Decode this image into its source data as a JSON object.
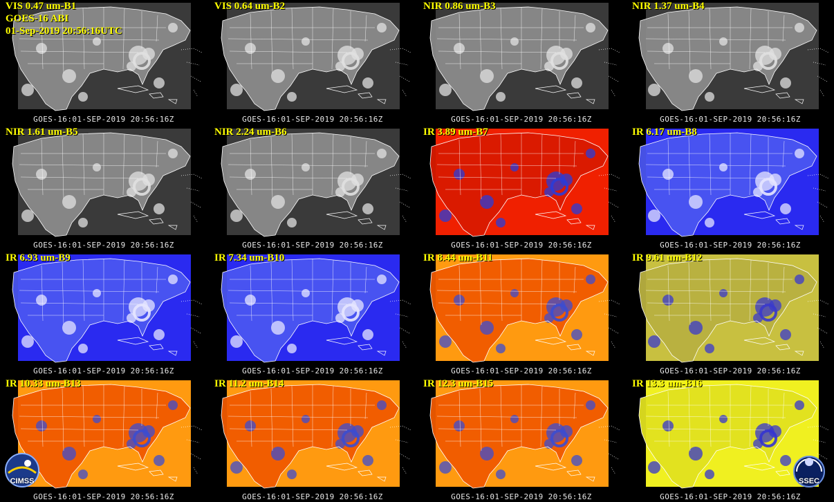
{
  "header": {
    "satellite": "GOES-16 ABI",
    "datetime": "01-Sep-2019 20:56:16UTC"
  },
  "logos": {
    "left": "CIMSS",
    "right": "SSEC"
  },
  "panels": [
    {
      "label": "VIS 0.47 um-B1",
      "stamp": "GOES-16:01-SEP-2019 20:56:16Z",
      "scheme": "gray",
      "tone": "mid"
    },
    {
      "label": "VIS 0.64 um-B2",
      "stamp": "GOES-16:01-SEP-2019 20:56:16Z",
      "scheme": "gray",
      "tone": "mid"
    },
    {
      "label": "NIR 0.86 um-B3",
      "stamp": "GOES-16:01-SEP-2019 20:56:16Z",
      "scheme": "gray",
      "tone": "light"
    },
    {
      "label": "NIR 1.37 um-B4",
      "stamp": "GOES-16:01-SEP-2019 20:56:16Z",
      "scheme": "gray",
      "tone": "dark"
    },
    {
      "label": "NIR 1.61 um-B5",
      "stamp": "GOES-16:01-SEP-2019 20:56:16Z",
      "scheme": "gray",
      "tone": "mid"
    },
    {
      "label": "NIR 2.24 um-B6",
      "stamp": "GOES-16:01-SEP-2019 20:56:16Z",
      "scheme": "gray",
      "tone": "dark"
    },
    {
      "label": "IR 3.89 um-B7",
      "stamp": "GOES-16:01-SEP-2019 20:56:16Z",
      "scheme": "red",
      "tone": "mid"
    },
    {
      "label": "IR 6.17 um-B8",
      "stamp": "GOES-16:01-SEP-2019 20:56:16Z",
      "scheme": "blue",
      "tone": "light"
    },
    {
      "label": "IR 6.93 um-B9",
      "stamp": "GOES-16:01-SEP-2019 20:56:16Z",
      "scheme": "blue",
      "tone": "mid"
    },
    {
      "label": "IR 7.34 um-B10",
      "stamp": "GOES-16:01-SEP-2019 20:56:16Z",
      "scheme": "blue",
      "tone": "dark"
    },
    {
      "label": "IR 8.44 um-B11",
      "stamp": "GOES-16:01-SEP-2019 20:56:16Z",
      "scheme": "orange",
      "tone": "mid"
    },
    {
      "label": "IR 9.61 um-B12",
      "stamp": "GOES-16:01-SEP-2019 20:56:16Z",
      "scheme": "olive",
      "tone": "mid"
    },
    {
      "label": "IR 10.33 um-B13",
      "stamp": "GOES-16:01-SEP-2019 20:56:16Z",
      "scheme": "orange",
      "tone": "mid"
    },
    {
      "label": "IR 11.2 um-B14",
      "stamp": "GOES-16:01-SEP-2019 20:56:16Z",
      "scheme": "orange",
      "tone": "mid"
    },
    {
      "label": "IR 12.3 um-B15",
      "stamp": "GOES-16:01-SEP-2019 20:56:16Z",
      "scheme": "orange",
      "tone": "mid"
    },
    {
      "label": "IR 13.3 um-B16",
      "stamp": "GOES-16:01-SEP-2019 20:56:16Z",
      "scheme": "yellow",
      "tone": "mid"
    }
  ],
  "colors": {
    "label": "#ffff00",
    "gray": {
      "land": "#8a8a8a",
      "ocean": "#3a3a3a",
      "cloud": "#e0e0e0"
    },
    "red": {
      "land": "#d81a00",
      "ocean": "#f02000",
      "cloud": "#2a3cd8"
    },
    "blue": {
      "land": "#4a55f0",
      "ocean": "#2a2af0",
      "cloud": "#e6e6ff"
    },
    "orange": {
      "land": "#f05a00",
      "ocean": "#ff9a10",
      "cloud": "#3c4cd0"
    },
    "olive": {
      "land": "#b8b040",
      "ocean": "#c8c040",
      "cloud": "#3a3acc"
    },
    "yellow": {
      "land": "#e0e020",
      "ocean": "#f0f020",
      "cloud": "#3434d0"
    }
  }
}
